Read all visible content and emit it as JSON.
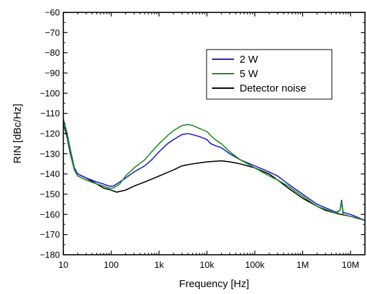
{
  "chart_data": {
    "type": "line",
    "xlabel": "Frequency [Hz]",
    "ylabel": "RIN [dBc/Hz]",
    "xscale": "log",
    "xlim": [
      10,
      20000000
    ],
    "ylim": [
      -180,
      -60
    ],
    "grid": false,
    "legend_position": "upper-right",
    "x_ticks": [
      {
        "value": 10,
        "label": "10"
      },
      {
        "value": 100,
        "label": "100"
      },
      {
        "value": 1000,
        "label": "1k"
      },
      {
        "value": 10000,
        "label": "10k"
      },
      {
        "value": 100000,
        "label": "100k"
      },
      {
        "value": 1000000,
        "label": "1M"
      },
      {
        "value": 10000000,
        "label": "10M"
      }
    ],
    "y_ticks": [
      -60,
      -70,
      -80,
      -90,
      -100,
      -110,
      -120,
      -130,
      -140,
      -150,
      -160,
      -170,
      -180
    ],
    "series": [
      {
        "name": "2 W",
        "color": "#1f1fc8",
        "x": [
          10,
          12,
          14,
          17,
          20,
          30,
          50,
          70,
          90,
          110,
          150,
          200,
          300,
          500,
          700,
          1000,
          1500,
          2000,
          3000,
          4000,
          5000,
          7000,
          10000,
          12000,
          15000,
          20000,
          30000,
          50000,
          100000,
          200000,
          300000,
          500000,
          1000000,
          2000000,
          5000000,
          6000000,
          6500000,
          7000000,
          10000000,
          20000000
        ],
        "y": [
          -113,
          -120,
          -128,
          -137,
          -140,
          -142,
          -144,
          -145,
          -146,
          -146,
          -144,
          -142,
          -139,
          -136,
          -133,
          -129,
          -125,
          -123,
          -120.5,
          -120,
          -120.5,
          -121.5,
          -123,
          -125,
          -126,
          -127,
          -130,
          -133,
          -136,
          -139,
          -141,
          -145,
          -150,
          -155,
          -159,
          -158,
          -153,
          -159,
          -160,
          -163
        ]
      },
      {
        "name": "5 W",
        "color": "#1e8c1e",
        "x": [
          10,
          12,
          14,
          17,
          20,
          30,
          50,
          70,
          90,
          110,
          150,
          200,
          300,
          500,
          700,
          1000,
          1500,
          2000,
          3000,
          4000,
          5000,
          7000,
          10000,
          12000,
          15000,
          20000,
          30000,
          50000,
          100000,
          200000,
          300000,
          500000,
          1000000,
          2000000,
          5000000,
          6000000,
          6500000,
          7000000,
          10000000,
          20000000
        ],
        "y": [
          -114,
          -121,
          -129,
          -138,
          -141,
          -143,
          -145,
          -146,
          -147,
          -147,
          -145,
          -141,
          -137,
          -133,
          -129,
          -125,
          -121,
          -118.5,
          -116,
          -115.5,
          -116,
          -117.5,
          -119,
          -121,
          -123,
          -125,
          -129,
          -133,
          -137,
          -141,
          -143,
          -146,
          -151,
          -156,
          -159.5,
          -158,
          -154,
          -160,
          -161,
          -163
        ]
      },
      {
        "name": "Detector noise",
        "color": "#000000",
        "x": [
          10,
          12,
          14,
          17,
          20,
          30,
          50,
          70,
          100,
          130,
          200,
          300,
          500,
          1000,
          2000,
          3000,
          5000,
          10000,
          20000,
          30000,
          50000,
          100000,
          200000,
          300000,
          500000,
          1000000,
          2000000,
          3000000,
          5000000,
          10000000,
          20000000
        ],
        "y": [
          -115,
          -122,
          -130,
          -138,
          -140,
          -142,
          -145,
          -147,
          -148,
          -149,
          -148,
          -146,
          -144,
          -141,
          -138,
          -136,
          -135,
          -134,
          -133.5,
          -134,
          -135,
          -137,
          -140,
          -143,
          -147,
          -152,
          -156,
          -158,
          -159.5,
          -161,
          -163
        ]
      }
    ]
  }
}
